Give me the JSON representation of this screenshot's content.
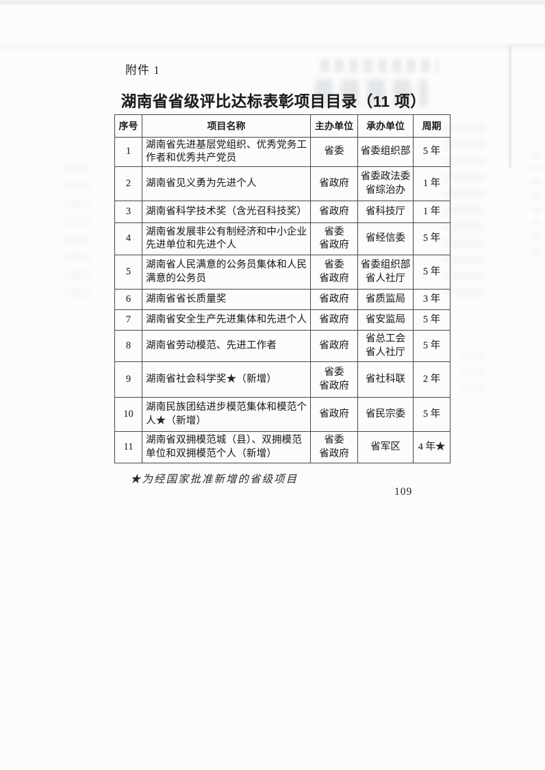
{
  "document": {
    "attachment_label": "附件 1",
    "title": "湖南省省级评比达标表彰项目目录（11 项）",
    "footnote": "★为经国家批准新增的省级项目",
    "page_number": "109"
  },
  "table": {
    "headers": [
      "序号",
      "项目名称",
      "主办单位",
      "承办单位",
      "周期"
    ],
    "rows": [
      {
        "no": "1",
        "name": "湖南省先进基层党组织、优秀党务工作者和优秀共产党员",
        "host": "省委",
        "undertaker": "省委组织部",
        "period": "5 年"
      },
      {
        "no": "2",
        "name": "湖南省见义勇为先进个人",
        "host": "省政府",
        "undertaker": "省委政法委\n省综治办",
        "period": "1 年"
      },
      {
        "no": "3",
        "name": "湖南省科学技术奖（含光召科技奖）",
        "host": "省政府",
        "undertaker": "省科技厅",
        "period": "1 年"
      },
      {
        "no": "4",
        "name": "湖南省发展非公有制经济和中小企业先进单位和先进个人",
        "host": "省委\n省政府",
        "undertaker": "省经信委",
        "period": "5 年"
      },
      {
        "no": "5",
        "name": "湖南省人民满意的公务员集体和人民满意的公务员",
        "host": "省委\n省政府",
        "undertaker": "省委组织部\n省人社厅",
        "period": "5 年"
      },
      {
        "no": "6",
        "name": "湖南省省长质量奖",
        "host": "省政府",
        "undertaker": "省质监局",
        "period": "3 年"
      },
      {
        "no": "7",
        "name": "湖南省安全生产先进集体和先进个人",
        "host": "省政府",
        "undertaker": "省安监局",
        "period": "5 年"
      },
      {
        "no": "8",
        "name": "湖南省劳动模范、先进工作者",
        "host": "省政府",
        "undertaker": "省总工会\n省人社厅",
        "period": "5 年"
      },
      {
        "no": "9",
        "name": "湖南省社会科学奖★（新增）",
        "host": "省委\n省政府",
        "undertaker": "省社科联",
        "period": "2 年"
      },
      {
        "no": "10",
        "name": "湖南民族团结进步模范集体和模范个人★（新增）",
        "host": "省政府",
        "undertaker": "省民宗委",
        "period": "5 年"
      },
      {
        "no": "11",
        "name": "湖南省双拥模范城（县）、双拥模范单位和双拥模范个人（新增）",
        "host": "省委\n省政府",
        "undertaker": "省军区",
        "period": "4 年★"
      }
    ]
  },
  "colors": {
    "page_background": "#fcfcfb",
    "table_border": "#464646",
    "text": "#262626"
  }
}
